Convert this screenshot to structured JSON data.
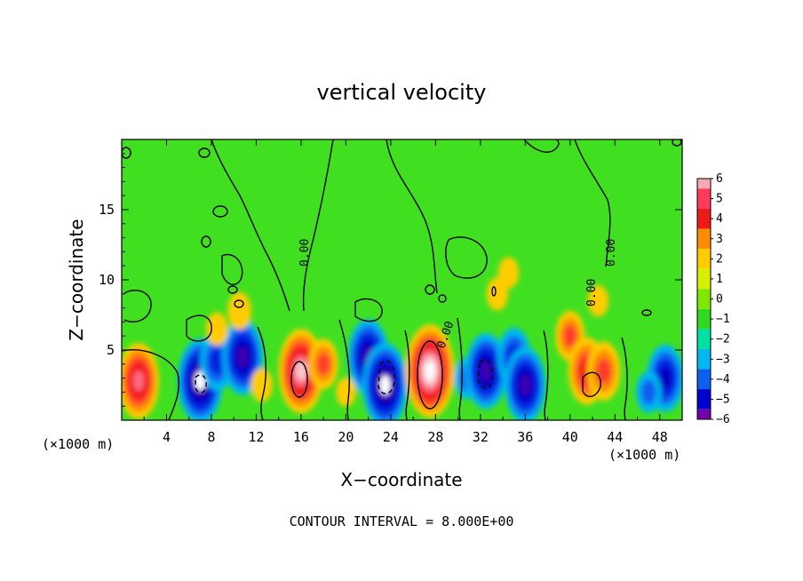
{
  "chart_data": {
    "type": "heatmap",
    "title": "vertical velocity",
    "xlabel": "X−coordinate",
    "ylabel": "Z−coordinate",
    "x_unit": "(×1000 m)",
    "z_unit": "(×1000 m)",
    "xlim": [
      0,
      50
    ],
    "ylim": [
      0,
      20
    ],
    "x_ticks": [
      4,
      8,
      12,
      16,
      20,
      24,
      28,
      32,
      36,
      40,
      44,
      48
    ],
    "y_ticks": [
      5,
      10,
      15
    ],
    "colorbar": {
      "levels": [
        6,
        5,
        4,
        3,
        2,
        1,
        0,
        -1,
        -2,
        -3,
        -4,
        -5,
        -6
      ],
      "labels": [
        "6",
        "5",
        "4",
        "3",
        "2",
        "1",
        "0",
        "−1",
        "−2",
        "−3",
        "−4",
        "−5",
        "−6"
      ],
      "colors": [
        "#f4a8b0",
        "#ff3a5a",
        "#ee1a1a",
        "#ff8c00",
        "#ffcc00",
        "#d8f000",
        "#80e800",
        "#30d820",
        "#00e0a0",
        "#00b8f0",
        "#1060f0",
        "#0000d0",
        "#7000a8"
      ]
    },
    "contour_labels": [
      "0.00",
      "0.00",
      "0.00",
      "0.00"
    ],
    "contour_interval_text": "CONTOUR INTERVAL = 8.000E+00",
    "features": [
      {
        "x": 1.5,
        "z": 2.8,
        "w": 12
      },
      {
        "x": 7.0,
        "z": 2.8,
        "w": -14
      },
      {
        "x": 8.5,
        "z": 4.2,
        "w": -8
      },
      {
        "x": 10.8,
        "z": 4.5,
        "w": -12
      },
      {
        "x": 10.5,
        "z": 7.8,
        "w": 3
      },
      {
        "x": 8.5,
        "z": 6.5,
        "w": 2
      },
      {
        "x": 16.0,
        "z": 3.5,
        "w": 14
      },
      {
        "x": 18.0,
        "z": 4.0,
        "w": 6
      },
      {
        "x": 12.5,
        "z": 2.5,
        "w": 2
      },
      {
        "x": 22.0,
        "z": 4.5,
        "w": -12
      },
      {
        "x": 23.5,
        "z": 2.5,
        "w": -14
      },
      {
        "x": 20.0,
        "z": 2.0,
        "w": 1
      },
      {
        "x": 27.5,
        "z": 3.5,
        "w": 16
      },
      {
        "x": 30.8,
        "z": 3.0,
        "w": -4
      },
      {
        "x": 32.5,
        "z": 3.5,
        "w": -12
      },
      {
        "x": 35.0,
        "z": 4.5,
        "w": -8
      },
      {
        "x": 36.0,
        "z": 2.5,
        "w": -12
      },
      {
        "x": 34.5,
        "z": 10.5,
        "w": 1.5
      },
      {
        "x": 33.5,
        "z": 9.0,
        "w": 2
      },
      {
        "x": 40.0,
        "z": 6.0,
        "w": 6
      },
      {
        "x": 41.5,
        "z": 3.5,
        "w": 10
      },
      {
        "x": 43.0,
        "z": 3.5,
        "w": 8
      },
      {
        "x": 42.5,
        "z": 8.5,
        "w": 1.5
      },
      {
        "x": 48.5,
        "z": 3.0,
        "w": -10
      },
      {
        "x": 47.0,
        "z": 2.0,
        "w": -4
      }
    ]
  }
}
